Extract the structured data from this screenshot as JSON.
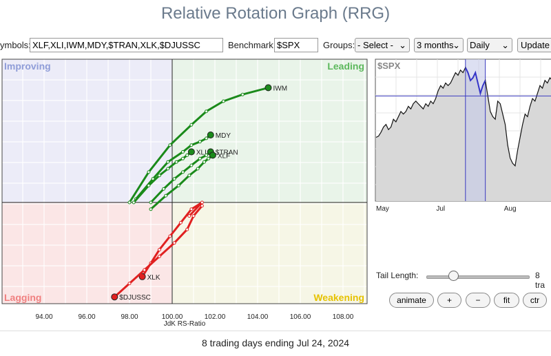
{
  "page_title": "Relative Rotation Graph (RRG)",
  "controls": {
    "symbols_label": "ymbols:",
    "symbols_value": "XLF,XLI,IWM,MDY,$TRAN,XLK,$DJUSSC",
    "benchmark_label": "Benchmark:",
    "benchmark_value": "$SPX",
    "groups_label": "Groups:",
    "groups_value": "- Select -",
    "period_value": "3 months",
    "frequency_value": "Daily",
    "update_label": "Update"
  },
  "chart_data": [
    {
      "type": "scatter",
      "title": "",
      "xlabel": "JdK RS-Ratio",
      "ylabel": "",
      "xlim": [
        92.5,
        109.5
      ],
      "x_ticks": [
        "94.00",
        "96.00",
        "98.00",
        "100.00",
        "102.00",
        "104.00",
        "106.00",
        "108.00"
      ],
      "x_tick_values": [
        94,
        96,
        98,
        100,
        102,
        104,
        106,
        108
      ],
      "quadrants": [
        {
          "name": "Improving",
          "color": "#8f9dd8"
        },
        {
          "name": "Leading",
          "color": "#5cb85c"
        },
        {
          "name": "Lagging",
          "color": "#f08080"
        },
        {
          "name": "Weakening",
          "color": "#e6c200"
        }
      ],
      "center": [
        100,
        100
      ],
      "grid": true,
      "series": [
        {
          "name": "IWM",
          "color": "#1a8a1a",
          "x": [
            98.0,
            98.9,
            99.9,
            100.9,
            101.6,
            102.4,
            103.3,
            104.5
          ],
          "y": [
            100.0,
            100.9,
            101.7,
            102.3,
            102.7,
            103.0,
            103.2,
            103.4
          ]
        },
        {
          "name": "MDY",
          "color": "#1a8a1a",
          "x": [
            98.3,
            99.1,
            99.8,
            100.5,
            100.9,
            101.3,
            101.6,
            101.8
          ],
          "y": [
            100.1,
            100.7,
            101.2,
            101.5,
            101.7,
            101.8,
            101.9,
            102.0
          ]
        },
        {
          "name": "XLI",
          "color": "#1a8a1a",
          "x": [
            98.2,
            98.9,
            99.4,
            99.8,
            100.2,
            100.5,
            100.7,
            100.9
          ],
          "y": [
            100.0,
            100.5,
            100.8,
            101.0,
            101.2,
            101.3,
            101.4,
            101.5
          ]
        },
        {
          "name": "$TRAN",
          "color": "#1a8a1a",
          "x": [
            99.0,
            99.6,
            100.1,
            100.5,
            100.9,
            101.3,
            101.6,
            101.8
          ],
          "y": [
            100.0,
            100.4,
            100.7,
            100.9,
            101.1,
            101.3,
            101.4,
            101.5
          ]
        },
        {
          "name": "XLF",
          "color": "#1a8a1a",
          "x": [
            99.0,
            99.7,
            100.3,
            100.8,
            101.2,
            101.5,
            101.7,
            101.9
          ],
          "y": [
            99.8,
            100.2,
            100.5,
            100.8,
            101.0,
            101.2,
            101.3,
            101.4
          ]
        },
        {
          "name": "XLK",
          "color": "#e02020",
          "x": [
            100.8,
            101.4,
            100.9,
            100.4,
            99.9,
            99.4,
            99.0,
            98.6
          ],
          "y": [
            99.6,
            100.0,
            99.8,
            99.4,
            99.0,
            98.6,
            98.2,
            97.8
          ]
        },
        {
          "name": "$DJUSSC",
          "color": "#e02020",
          "x": [
            101.4,
            101.0,
            100.7,
            100.1,
            99.4,
            98.7,
            98.0,
            97.3
          ],
          "y": [
            99.9,
            99.6,
            99.2,
            98.8,
            98.4,
            98.0,
            97.6,
            97.2
          ]
        }
      ]
    },
    {
      "type": "line",
      "title": "$SPX",
      "x_ticks": [
        "May",
        "Jul",
        "Aug"
      ],
      "grid": true,
      "values": [
        46,
        47,
        50,
        54,
        56,
        52,
        54,
        60,
        58,
        62,
        66,
        64,
        66,
        70,
        68,
        72,
        74,
        72,
        70,
        68,
        72,
        70,
        74,
        72,
        76,
        82,
        86,
        84,
        88,
        86,
        88,
        92,
        96,
        94,
        98,
        96,
        100,
        96,
        90,
        92,
        96,
        88,
        80,
        86,
        90,
        78,
        66,
        62,
        60,
        74,
        72,
        64,
        56,
        40,
        30,
        26,
        24,
        36,
        46,
        56,
        64,
        62,
        70,
        76,
        74,
        80,
        86,
        84,
        90,
        88,
        92,
        90
      ],
      "highlight_range": [
        36,
        44
      ],
      "crosshair_index": 45
    }
  ],
  "labels": {
    "rs_axis": "JdK RS-Ratio",
    "tail_length": "Tail Length:",
    "tail_value": "8 tra",
    "footer": "8 trading days ending Jul 24, 2024"
  },
  "buttons": {
    "animate": "animate",
    "plus": "+",
    "minus": "−",
    "fit": "fit",
    "ctr": "ctr"
  }
}
